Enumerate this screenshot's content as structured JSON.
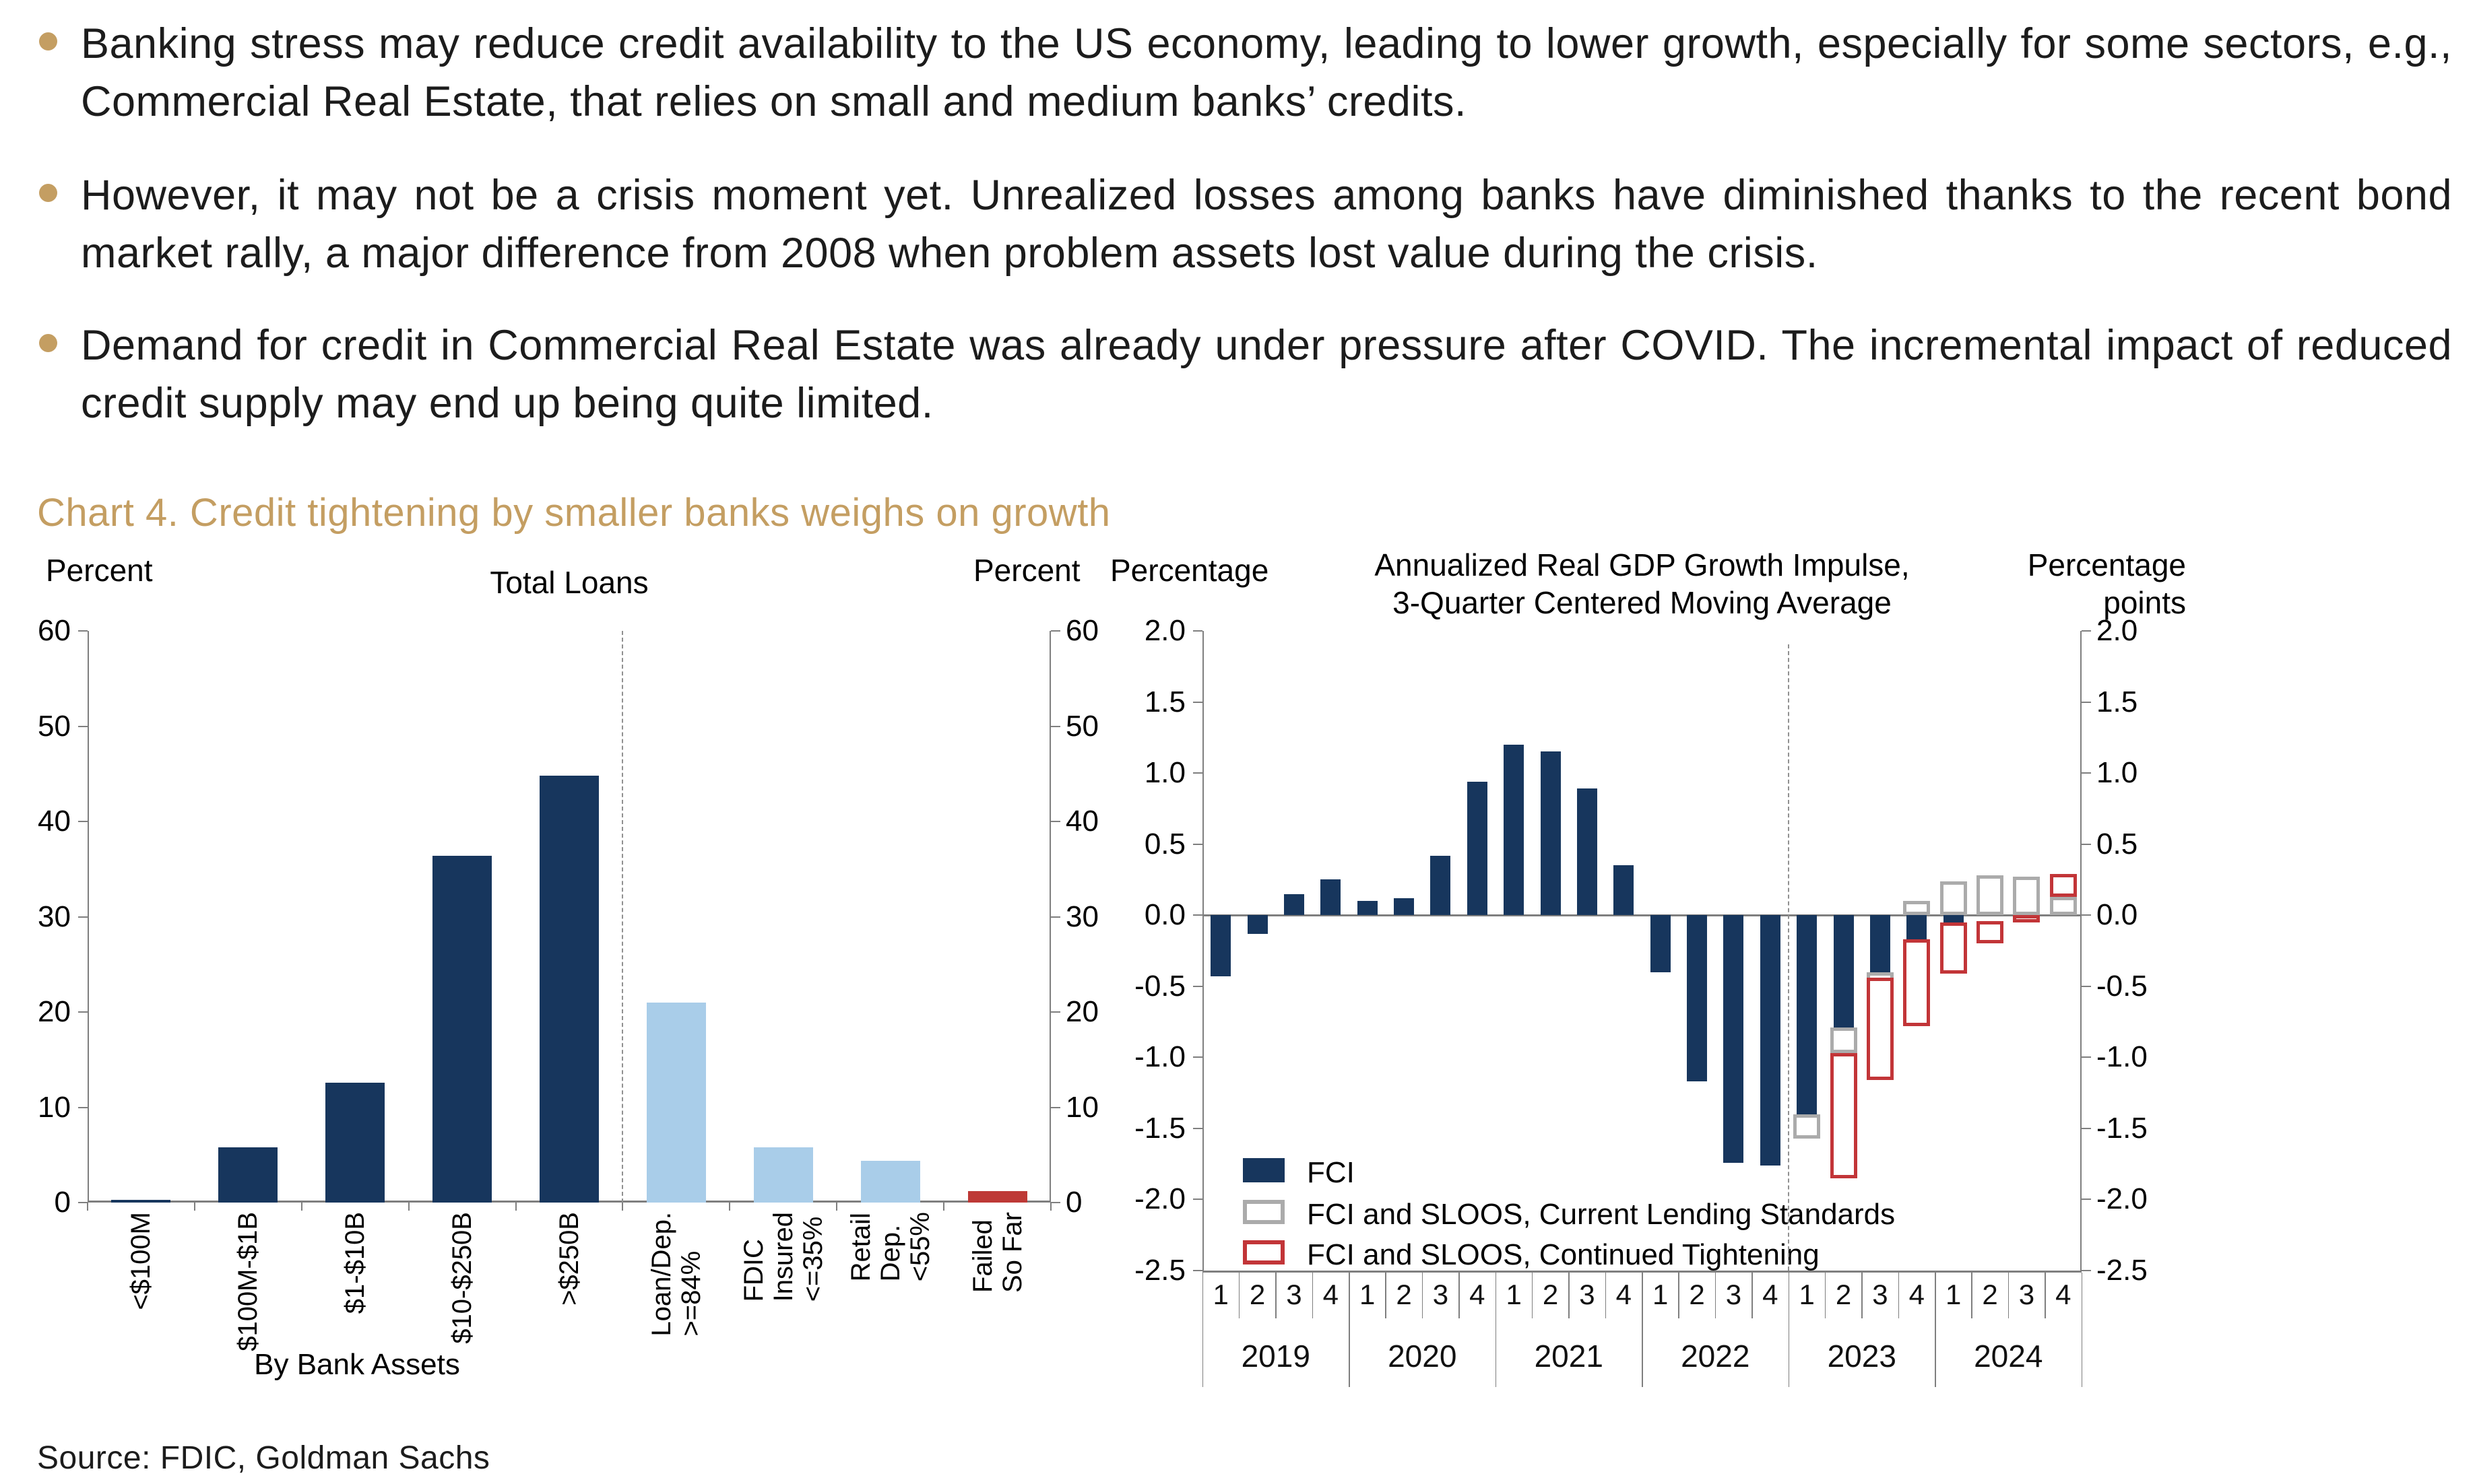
{
  "bullets": [
    "Banking stress may reduce credit availability to the US economy, leading to lower growth, especially for some sectors, e.g., Commercial Real Estate, that relies on small and medium banks’ credits.",
    "However, it may not be a crisis moment yet. Unrealized losses among banks have diminished thanks to the recent bond market rally, a major difference from 2008 when problem assets lost value during the crisis.",
    "Demand for credit in Commercial Real Estate was already under pressure after COVID. The incremental impact of reduced credit supply may end up being quite limited."
  ],
  "section_title": "Chart 4. Credit tightening by smaller banks weighs on growth",
  "source": "Source: FDIC, Goldman Sachs",
  "colors": {
    "navy": "#17365D",
    "light_blue": "#A9CDE9",
    "red": "#BE3936",
    "red_outline": "#C23538",
    "gray_outline": "#ABABAB",
    "gold": "#C49E62",
    "axis": "#7F7F7F",
    "dash": "#909090"
  },
  "chart_data": [
    {
      "type": "bar",
      "title": "Total Loans",
      "left_axis_label": "Percent",
      "right_axis_label": "Percent",
      "xlabel_group": "By Bank Assets",
      "ylim": [
        0,
        60
      ],
      "yticks": [
        0,
        10,
        20,
        30,
        40,
        50,
        60
      ],
      "grid": false,
      "categories": [
        "<$100M",
        "$100M-$1B",
        "$1-$10B",
        "$10-$250B",
        ">$250B",
        "Loan/Dep.\n>=84%",
        "FDIC\nInsured\n<=35%",
        "Retail\nDep.\n<55%",
        "Failed\nSo Far"
      ],
      "values": [
        0.3,
        5.8,
        12.6,
        36.4,
        44.8,
        21.0,
        5.8,
        4.4,
        1.2
      ],
      "bar_colors": [
        "navy",
        "navy",
        "navy",
        "navy",
        "navy",
        "light_blue",
        "light_blue",
        "light_blue",
        "red"
      ],
      "divider_after_index": 4
    },
    {
      "type": "bar",
      "title_line1": "Annualized Real GDP Growth Impulse,",
      "title_line2": "3-Quarter Centered Moving Average",
      "left_axis_label": "Percentage",
      "right_axis_label_line1": "Percentage",
      "right_axis_label_line2": "points",
      "ylim": [
        -2.5,
        2.0
      ],
      "yticks": [
        2.0,
        1.5,
        1.0,
        0.5,
        0.0,
        -0.5,
        -1.0,
        -1.5,
        -2.0,
        -2.5
      ],
      "grid": false,
      "legend_position": "bottom-left-inside",
      "years": [
        "2019",
        "2020",
        "2021",
        "2022",
        "2023",
        "2024"
      ],
      "quarter_labels": [
        "1",
        "2",
        "3",
        "4"
      ],
      "forecast_divider_after_quarter": 16,
      "series": [
        {
          "name": "FCI",
          "style": "solid",
          "color": "navy",
          "values": [
            -0.43,
            -0.13,
            0.15,
            0.25,
            0.1,
            0.12,
            0.42,
            0.94,
            1.2,
            1.15,
            0.89,
            0.35,
            -0.4,
            -1.17,
            -1.74,
            -1.76,
            -1.4,
            -0.79,
            -0.4,
            -0.17,
            -0.05,
            0,
            0,
            0
          ]
        },
        {
          "name": "FCI and SLOOS, Current Lending Standards",
          "style": "outline",
          "color": "gray_outline",
          "ranges": [
            null,
            null,
            null,
            null,
            null,
            null,
            null,
            null,
            null,
            null,
            null,
            null,
            null,
            null,
            null,
            null,
            [
              -1.4,
              -1.57
            ],
            [
              -0.79,
              -0.97
            ],
            [
              -0.4,
              -0.47
            ],
            [
              0,
              0.1
            ],
            [
              0,
              0.24
            ],
            [
              0,
              0.28
            ],
            [
              0,
              0.27
            ],
            [
              0,
              0.13
            ]
          ]
        },
        {
          "name": "FCI and SLOOS, Continued Tightening",
          "style": "outline",
          "color": "red_outline",
          "ranges": [
            null,
            null,
            null,
            null,
            null,
            null,
            null,
            null,
            null,
            null,
            null,
            null,
            null,
            null,
            null,
            null,
            null,
            [
              -0.97,
              -1.85
            ],
            [
              -0.44,
              -1.16
            ],
            [
              -0.17,
              -0.78
            ],
            [
              -0.05,
              -0.41
            ],
            [
              -0.04,
              -0.2
            ],
            [
              0,
              -0.05
            ],
            [
              0.13,
              0.29
            ]
          ]
        }
      ]
    }
  ]
}
